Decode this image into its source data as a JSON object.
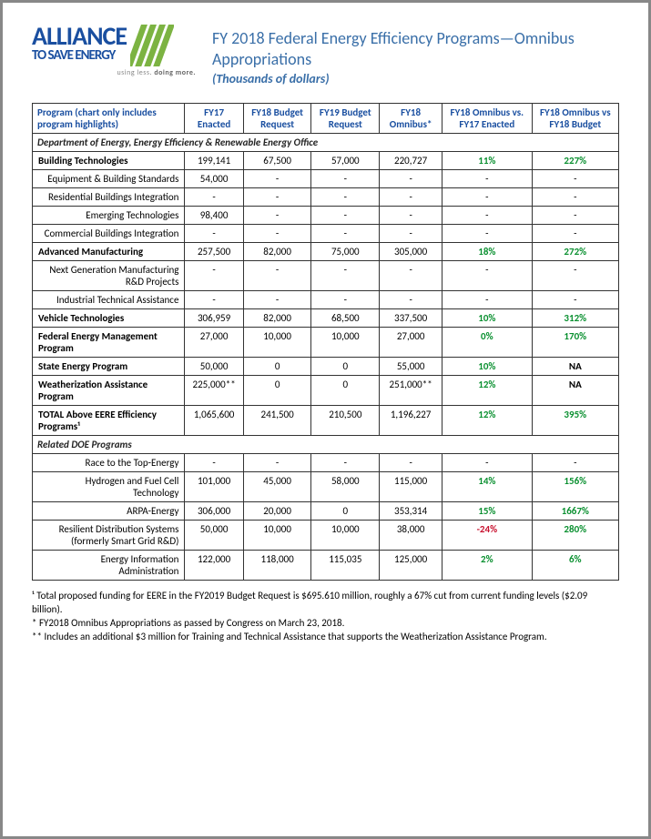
{
  "header": {
    "logo_alliance": "ALLIANCE",
    "logo_tosave": "TO SAVE ENERGY",
    "tagline_light": "using less.",
    "tagline_bold": "doing more.",
    "title": "FY 2018 Federal Energy Efficiency Programs—Omnibus Appropriations",
    "subtitle": "(Thousands of dollars)"
  },
  "columns": [
    "Program (chart only includes program highlights)",
    "FY17 Enacted",
    "FY18 Budget Request",
    "FY19 Budget Request",
    "FY18 Omnibus*",
    "FY18 Omnibus vs. FY17 Enacted",
    "FY18 Omnibus vs FY18 Budget"
  ],
  "section1": "Department of Energy, Energy Efficiency & Renewable Energy Office",
  "section2": "Related DOE Programs",
  "rows": {
    "r0": {
      "p": "Building Technologies",
      "c": [
        "199,141",
        "67,500",
        "57,000",
        "220,727",
        "11%",
        "227%"
      ],
      "b": true,
      "g": [
        4,
        5
      ]
    },
    "r1": {
      "p": "Equipment & Building Standards",
      "c": [
        "54,000",
        "-",
        "-",
        "-",
        "-",
        "-"
      ],
      "sub": true
    },
    "r2": {
      "p": "Residential Buildings Integration",
      "c": [
        "-",
        "-",
        "-",
        "-",
        "-",
        "-"
      ],
      "sub": true
    },
    "r3": {
      "p": "Emerging Technologies",
      "c": [
        "98,400",
        "-",
        "-",
        "-",
        "-",
        "-"
      ],
      "sub": true
    },
    "r4": {
      "p": "Commercial Buildings Integration",
      "c": [
        "-",
        "-",
        "-",
        "-",
        "-",
        "-"
      ],
      "sub": true
    },
    "r5": {
      "p": "Advanced Manufacturing",
      "c": [
        "257,500",
        "82,000",
        "75,000",
        "305,000",
        "18%",
        "272%"
      ],
      "b": true,
      "g": [
        4,
        5
      ]
    },
    "r6": {
      "p": "Next Generation Manufacturing R&D Projects",
      "c": [
        "-",
        "-",
        "-",
        "-",
        "-",
        "-"
      ],
      "sub": true
    },
    "r7": {
      "p": "Industrial Technical Assistance",
      "c": [
        "-",
        "-",
        "-",
        "-",
        "-",
        "-"
      ],
      "sub": true
    },
    "r8": {
      "p": "Vehicle Technologies",
      "c": [
        "306,959",
        "82,000",
        "68,500",
        "337,500",
        "10%",
        "312%"
      ],
      "b": true,
      "g": [
        4,
        5
      ]
    },
    "r9": {
      "p": "Federal Energy Management Program",
      "c": [
        "27,000",
        "10,000",
        "10,000",
        "27,000",
        "0%",
        "170%"
      ],
      "b": true,
      "g": [
        4,
        5
      ]
    },
    "r10": {
      "p": "State Energy Program",
      "c": [
        "50,000",
        "0",
        "0",
        "55,000",
        "10%",
        "NA"
      ],
      "b": true,
      "g": [
        4
      ],
      "na": [
        5
      ]
    },
    "r11": {
      "p": "Weatherization Assistance Program",
      "c": [
        "225,000**",
        "0",
        "0",
        "251,000**",
        "12%",
        "NA"
      ],
      "b": true,
      "g": [
        4
      ],
      "na": [
        5
      ]
    },
    "r12": {
      "p": "TOTAL Above EERE Efficiency Programs¹",
      "c": [
        "1,065,600",
        "241,500",
        "210,500",
        "1,196,227",
        "12%",
        "395%"
      ],
      "b": true,
      "g": [
        4,
        5
      ]
    },
    "r13": {
      "p": "Race to the Top-Energy",
      "c": [
        "-",
        "-",
        "-",
        "-",
        "-",
        "-"
      ],
      "sub": true
    },
    "r14": {
      "p": "Hydrogen and Fuel Cell Technology",
      "c": [
        "101,000",
        "45,000",
        "58,000",
        "115,000",
        "14%",
        "156%"
      ],
      "sub": true,
      "g": [
        4,
        5
      ]
    },
    "r15": {
      "p": "ARPA-Energy",
      "c": [
        "306,000",
        "20,000",
        "0",
        "353,314",
        "15%",
        "1667%"
      ],
      "sub": true,
      "g": [
        4,
        5
      ]
    },
    "r16": {
      "p": "Resilient Distribution Systems (formerly Smart Grid R&D)",
      "c": [
        "50,000",
        "10,000",
        "10,000",
        "38,000",
        "-24%",
        "280%"
      ],
      "sub": true,
      "r": [
        4
      ],
      "g": [
        5
      ]
    },
    "r17": {
      "p": "Energy Information Administration",
      "c": [
        "122,000",
        "118,000",
        "115,035",
        "125,000",
        "2%",
        "6%"
      ],
      "sub": true,
      "g": [
        4,
        5
      ]
    }
  },
  "footnotes": [
    "¹ Total proposed funding for EERE in the FY2019 Budget Request is $695.610 million, roughly a 67% cut from current funding levels ($2.09 billion).",
    "* FY2018 Omnibus Appropriations as passed by Congress on March 23, 2018.",
    "** Includes an additional $3 million for Training and Technical Assistance that supports the Weatherization Assistance Program."
  ],
  "colors": {
    "brand_blue": "#1a4fa0",
    "title_blue": "#3a6fa8",
    "stripe_green": "#7cb342",
    "pct_green": "#0a9030",
    "pct_red": "#c8102e",
    "border": "#333333"
  }
}
